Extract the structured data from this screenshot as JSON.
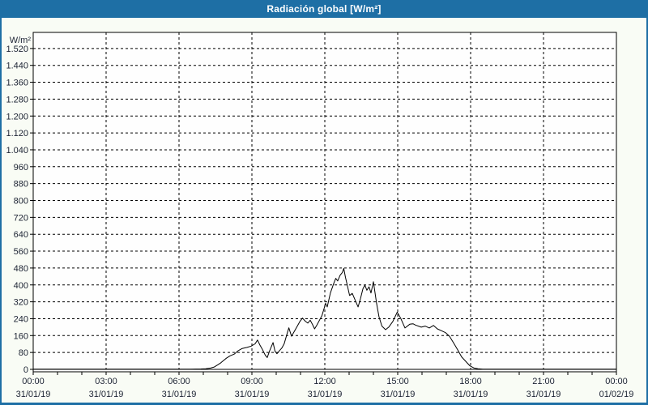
{
  "window": {
    "title": "Radiación global [W/m²]"
  },
  "colors": {
    "titlebar_bg": "#1e6fa5",
    "titlebar_text": "#ffffff",
    "content_bg": "#f9fcf5",
    "plot_bg": "#fefefe",
    "grid": "#000000",
    "frame": "#000000",
    "axis_text": "#1c2333",
    "line": "#000000"
  },
  "chart_data": {
    "type": "line",
    "title": "Radiación global [W/m²]",
    "ylabel": "W/m²",
    "xlabel": "",
    "ylim": [
      0,
      1520
    ],
    "ytick_step": 80,
    "ytick_labels": [
      "0",
      "80",
      "160",
      "240",
      "320",
      "400",
      "480",
      "560",
      "640",
      "720",
      "800",
      "880",
      "960",
      "1.040",
      "1.120",
      "1.200",
      "1.280",
      "1.360",
      "1.440",
      "1.520"
    ],
    "xlim_hours": [
      0,
      24
    ],
    "x_minor_tick_hours": 1,
    "x_major_ticks": [
      {
        "hour": 0,
        "time": "00:00",
        "date": "31/01/19"
      },
      {
        "hour": 3,
        "time": "03:00",
        "date": "31/01/19"
      },
      {
        "hour": 6,
        "time": "06:00",
        "date": "31/01/19"
      },
      {
        "hour": 9,
        "time": "09:00",
        "date": "31/01/19"
      },
      {
        "hour": 12,
        "time": "12:00",
        "date": "31/01/19"
      },
      {
        "hour": 15,
        "time": "15:00",
        "date": "31/01/19"
      },
      {
        "hour": 18,
        "time": "18:00",
        "date": "31/01/19"
      },
      {
        "hour": 21,
        "time": "21:00",
        "date": "31/01/19"
      },
      {
        "hour": 24,
        "time": "00:00",
        "date": "01/02/19"
      }
    ],
    "grid": "dashed",
    "legend_position": "none",
    "series": [
      {
        "name": "Radiación global",
        "unit": "W/m²",
        "color": "#000000",
        "points": [
          [
            0,
            1
          ],
          [
            1,
            1
          ],
          [
            2,
            1
          ],
          [
            3,
            1
          ],
          [
            4,
            1
          ],
          [
            5,
            1
          ],
          [
            6,
            1
          ],
          [
            6.5,
            1
          ],
          [
            6.9,
            2
          ],
          [
            7.1,
            3
          ],
          [
            7.3,
            6
          ],
          [
            7.45,
            11
          ],
          [
            7.6,
            22
          ],
          [
            7.72,
            31
          ],
          [
            7.83,
            42
          ],
          [
            7.95,
            53
          ],
          [
            8.1,
            64
          ],
          [
            8.27,
            72
          ],
          [
            8.43,
            88
          ],
          [
            8.6,
            99
          ],
          [
            8.8,
            104
          ],
          [
            8.97,
            110
          ],
          [
            9.13,
            121
          ],
          [
            9.23,
            139
          ],
          [
            9.33,
            115
          ],
          [
            9.42,
            97
          ],
          [
            9.55,
            67
          ],
          [
            9.63,
            56
          ],
          [
            9.73,
            88
          ],
          [
            9.87,
            127
          ],
          [
            9.95,
            86
          ],
          [
            10.03,
            74
          ],
          [
            10.13,
            88
          ],
          [
            10.23,
            101
          ],
          [
            10.33,
            122
          ],
          [
            10.42,
            158
          ],
          [
            10.52,
            197
          ],
          [
            10.63,
            157
          ],
          [
            10.8,
            191
          ],
          [
            10.97,
            226
          ],
          [
            11.08,
            243
          ],
          [
            11.2,
            228
          ],
          [
            11.3,
            219
          ],
          [
            11.4,
            233
          ],
          [
            11.5,
            211
          ],
          [
            11.58,
            192
          ],
          [
            11.68,
            211
          ],
          [
            11.78,
            233
          ],
          [
            11.88,
            254
          ],
          [
            11.97,
            288
          ],
          [
            12.03,
            313
          ],
          [
            12.1,
            296
          ],
          [
            12.23,
            362
          ],
          [
            12.37,
            408
          ],
          [
            12.45,
            431
          ],
          [
            12.53,
            419
          ],
          [
            12.63,
            446
          ],
          [
            12.72,
            459
          ],
          [
            12.78,
            478
          ],
          [
            12.85,
            436
          ],
          [
            12.92,
            401
          ],
          [
            13.02,
            350
          ],
          [
            13.13,
            360
          ],
          [
            13.23,
            333
          ],
          [
            13.37,
            296
          ],
          [
            13.47,
            336
          ],
          [
            13.57,
            382
          ],
          [
            13.65,
            399
          ],
          [
            13.73,
            375
          ],
          [
            13.82,
            391
          ],
          [
            13.9,
            362
          ],
          [
            14.0,
            415
          ],
          [
            14.13,
            313
          ],
          [
            14.23,
            249
          ],
          [
            14.35,
            205
          ],
          [
            14.5,
            188
          ],
          [
            14.63,
            200
          ],
          [
            14.8,
            227
          ],
          [
            14.98,
            271
          ],
          [
            15.13,
            240
          ],
          [
            15.3,
            196
          ],
          [
            15.5,
            214
          ],
          [
            15.63,
            216
          ],
          [
            15.73,
            210
          ],
          [
            15.97,
            200
          ],
          [
            16.13,
            205
          ],
          [
            16.3,
            196
          ],
          [
            16.47,
            208
          ],
          [
            16.63,
            192
          ],
          [
            16.8,
            183
          ],
          [
            16.97,
            174
          ],
          [
            17.13,
            157
          ],
          [
            17.3,
            125
          ],
          [
            17.47,
            92
          ],
          [
            17.63,
            59
          ],
          [
            17.8,
            38
          ],
          [
            17.97,
            17
          ],
          [
            18.13,
            7
          ],
          [
            18.3,
            3
          ],
          [
            18.5,
            1
          ],
          [
            19,
            1
          ],
          [
            20,
            1
          ],
          [
            21,
            1
          ],
          [
            22,
            1
          ],
          [
            23,
            1
          ],
          [
            24,
            1
          ]
        ]
      }
    ]
  }
}
